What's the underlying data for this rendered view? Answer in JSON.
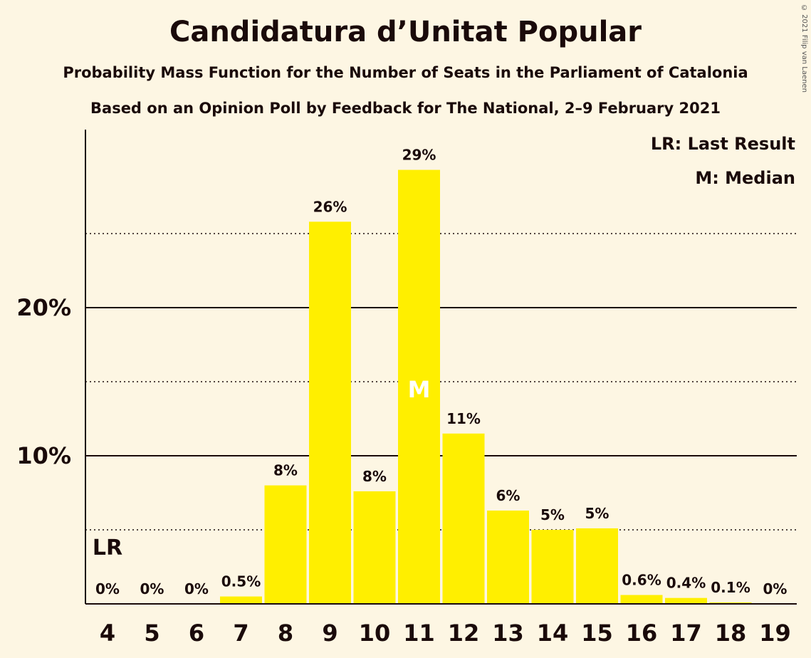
{
  "title": "Candidatura d’Unitat Popular",
  "subtitle": "Probability Mass Function for the Number of Seats in the Parliament of Catalonia",
  "source": "Based on an Opinion Poll by Feedback for The National, 2–9 February 2021",
  "copyright": "© 2021 Filip van Laenen",
  "legend": {
    "last_result": "LR: Last Result",
    "median": "M: Median"
  },
  "markers": {
    "last_result_label": "LR",
    "last_result_seats": 4,
    "median_label": "M",
    "median_seats": 11
  },
  "colors": {
    "bar": "#ffef00",
    "background": "#fdf6e3",
    "text": "#1a0a0a"
  },
  "chart_data": {
    "type": "bar",
    "categories": [
      "4",
      "5",
      "6",
      "7",
      "8",
      "9",
      "10",
      "11",
      "12",
      "13",
      "14",
      "15",
      "16",
      "17",
      "18",
      "19"
    ],
    "values": [
      0,
      0,
      0,
      0.5,
      8.0,
      25.8,
      7.6,
      29.3,
      11.5,
      6.3,
      5.0,
      5.1,
      0.6,
      0.4,
      0.1,
      0
    ],
    "data_labels": [
      "0%",
      "0%",
      "0%",
      "0.5%",
      "8%",
      "26%",
      "8%",
      "29%",
      "11%",
      "6%",
      "5%",
      "5%",
      "0.6%",
      "0.4%",
      "0.1%",
      "0%"
    ],
    "yticks": [
      10,
      20
    ],
    "ytick_labels": [
      "10%",
      "20%"
    ],
    "minor_gridlines": [
      5,
      15,
      25
    ],
    "ylim": [
      0,
      32
    ],
    "grid": true,
    "legend_position": "top-right"
  }
}
